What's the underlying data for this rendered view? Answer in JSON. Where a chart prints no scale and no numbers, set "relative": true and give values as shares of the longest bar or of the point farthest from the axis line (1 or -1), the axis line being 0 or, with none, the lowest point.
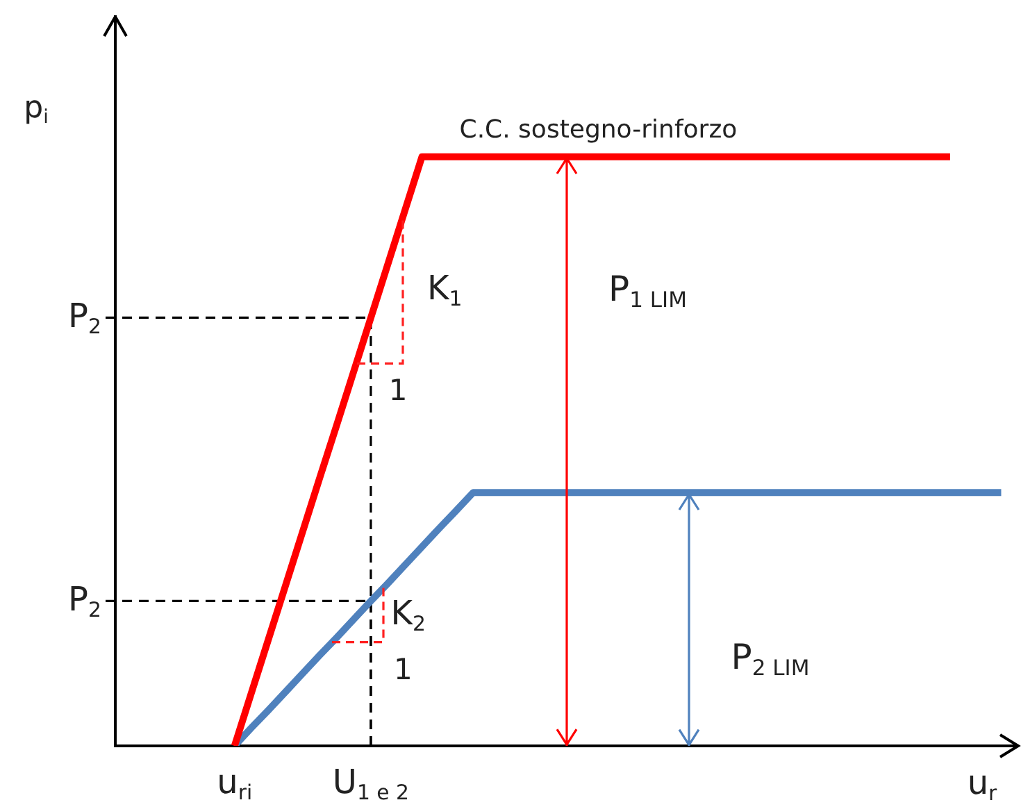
{
  "chart_data": {
    "type": "line",
    "relative": true,
    "ylabel": "p$_{i}$",
    "xlabel": "u$_{r}$",
    "categories": [
      null,
      null,
      null,
      null,
      null,
      null,
      null,
      "u$_{ri}$",
      null,
      null,
      null,
      null,
      null,
      null,
      null,
      "U$_{1 e 2}$",
      null,
      null,
      null,
      null,
      null,
      null,
      null,
      null,
      null,
      null,
      null,
      null,
      null,
      null,
      null,
      null,
      null,
      null,
      null,
      null,
      null,
      null,
      null,
      null,
      null,
      null,
      null,
      null,
      null,
      null,
      null,
      null,
      null,
      null,
      null,
      null,
      null,
      null
    ],
    "series": [
      {
        "name": "C.C. sostegno-rinforzo",
        "color": "#ff0000",
        "values": [
          null,
          null,
          null,
          null,
          null,
          null,
          null,
          0,
          0.091,
          0.182,
          0.273,
          0.364,
          0.455,
          0.545,
          0.636,
          0.727,
          0.818,
          0.909,
          1,
          1,
          1,
          1,
          1,
          1,
          1,
          1,
          1,
          1,
          1,
          1,
          1,
          1,
          1,
          1,
          1,
          1,
          1,
          1,
          1,
          1,
          1,
          1,
          1,
          1,
          1,
          1,
          1,
          1,
          1,
          1,
          null,
          null,
          null,
          null
        ]
      },
      {
        "color": "#4f81bd",
        "values": [
          null,
          null,
          null,
          null,
          null,
          null,
          null,
          0,
          0.031,
          0.061,
          0.092,
          0.123,
          0.154,
          0.184,
          0.215,
          0.246,
          0.276,
          0.307,
          0.338,
          0.369,
          0.399,
          0.43,
          0.43,
          0.43,
          0.43,
          0.43,
          0.43,
          0.43,
          0.43,
          0.43,
          0.43,
          0.43,
          0.43,
          0.43,
          0.43,
          0.43,
          0.43,
          0.43,
          0.43,
          0.43,
          0.43,
          0.43,
          0.43,
          0.43,
          0.43,
          0.43,
          0.43,
          0.43,
          0.43,
          0.43,
          0.43,
          0.43,
          0.43,
          null
        ]
      }
    ],
    "annotations": [
      {
        "text": "P$_{2}$",
        "x": "U$_{1 e 2}$",
        "y": 0.727
      },
      {
        "text": "P$_{2}$",
        "x": "U$_{1 e 2}$",
        "y": 0.246
      },
      "K$_{1}$",
      "1",
      "K$_{2}$",
      "1",
      "P$_{1 LIM}$",
      "P$_{2 LIM}$"
    ],
    "legend": false,
    "grid": false,
    "marker": "none"
  }
}
